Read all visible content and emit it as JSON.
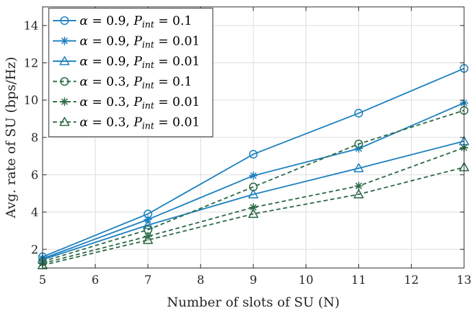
{
  "chart_data": {
    "type": "line",
    "title": "",
    "xlabel": "Number of slots of SU (N)",
    "ylabel": "Avg. rate of SU (bps/Hz)",
    "xlim": [
      5,
      13
    ],
    "ylim": [
      1,
      15
    ],
    "xticks": [
      5,
      6,
      7,
      8,
      9,
      10,
      11,
      12,
      13
    ],
    "yticks": [
      2,
      4,
      6,
      8,
      10,
      12,
      14
    ],
    "grid": true,
    "legend_position": "top-left",
    "x": [
      5,
      7,
      9,
      11,
      13
    ],
    "series": [
      {
        "name": "α = 0.9, P_int = 0.1",
        "alpha": "0.9",
        "pint": "0.1",
        "color": "#1f82c0",
        "dash": "solid",
        "marker": "circle",
        "values": [
          1.6,
          3.9,
          7.1,
          9.3,
          11.7
        ]
      },
      {
        "name": "α = 0.9, P_int = 0.01",
        "alpha": "0.9",
        "pint": "0.01",
        "color": "#1f82c0",
        "dash": "solid",
        "marker": "asterisk",
        "values": [
          1.5,
          3.6,
          5.95,
          7.4,
          9.85
        ]
      },
      {
        "name": "α = 0.9, P_int = 0.01",
        "alpha": "0.9",
        "pint": "0.01",
        "color": "#1f82c0",
        "dash": "solid",
        "marker": "triangle",
        "values": [
          1.45,
          3.3,
          4.95,
          6.35,
          7.8
        ]
      },
      {
        "name": "α = 0.3, P_int = 0.1",
        "alpha": "0.3",
        "pint": "0.1",
        "color": "#2e6b47",
        "dash": "dashed",
        "marker": "circle",
        "values": [
          1.35,
          3.05,
          5.35,
          7.65,
          9.45
        ]
      },
      {
        "name": "α = 0.3, P_int = 0.01",
        "alpha": "0.3",
        "pint": "0.01",
        "color": "#2e6b47",
        "dash": "dashed",
        "marker": "asterisk",
        "values": [
          1.25,
          2.7,
          4.25,
          5.4,
          7.45
        ]
      },
      {
        "name": "α = 0.3, P_int = 0.01",
        "alpha": "0.3",
        "pint": "0.01",
        "color": "#2e6b47",
        "dash": "dashed",
        "marker": "triangle",
        "values": [
          1.15,
          2.5,
          3.9,
          4.95,
          6.4
        ]
      }
    ]
  }
}
